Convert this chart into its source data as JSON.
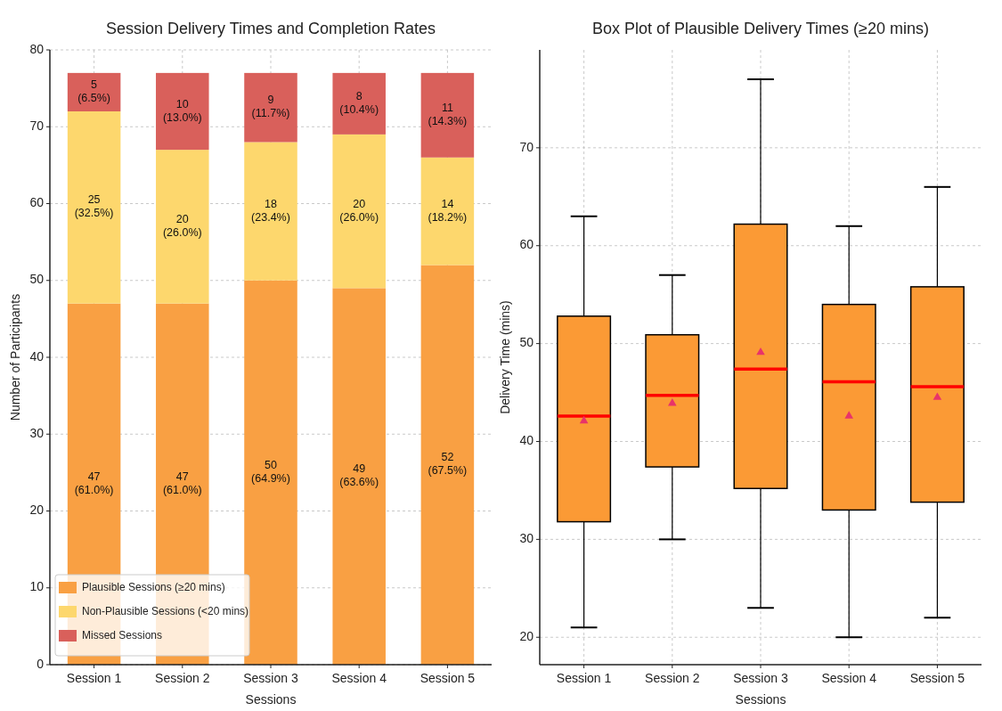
{
  "chart_data": [
    {
      "type": "bar",
      "title": "Session Delivery Times and Completion Rates",
      "xlabel": "Sessions",
      "ylabel": "Number of Participants",
      "categories": [
        "Session 1",
        "Session 2",
        "Session 3",
        "Session 4",
        "Session 5"
      ],
      "stacked": true,
      "series": [
        {
          "name": "Plausible Sessions (≥20 mins)",
          "color": "#f9a043",
          "values": [
            47,
            47,
            50,
            49,
            52
          ],
          "value_labels": [
            "47\n(61.0%)",
            "47\n(61.0%)",
            "50\n(64.9%)",
            "49\n(63.6%)",
            "52\n(67.5%)"
          ]
        },
        {
          "name": "Non-Plausible Sessions (<20 mins)",
          "color": "#fdd76d",
          "values": [
            25,
            20,
            18,
            20,
            14
          ],
          "value_labels": [
            "25\n(32.5%)",
            "20\n(26.0%)",
            "18\n(23.4%)",
            "20\n(26.0%)",
            "14\n(18.2%)"
          ]
        },
        {
          "name": "Missed Sessions",
          "color": "#d9605b",
          "values": [
            5,
            10,
            9,
            8,
            11
          ],
          "value_labels": [
            "5\n(6.5%)",
            "10\n(13.0%)",
            "9\n(11.7%)",
            "8\n(10.4%)",
            "11\n(14.3%)"
          ]
        }
      ],
      "ylim": [
        0,
        80
      ],
      "yticks": [
        0,
        10,
        20,
        30,
        40,
        50,
        60,
        70,
        80
      ],
      "grid": true,
      "legend": "bottom left"
    },
    {
      "type": "box",
      "title": "Box Plot of Plausible Delivery Times (≥20 mins)",
      "xlabel": "Sessions",
      "ylabel": "Delivery Time (mins)",
      "categories": [
        "Session 1",
        "Session 2",
        "Session 3",
        "Session 4",
        "Session 5"
      ],
      "series": [
        {
          "color": "#fb9a35",
          "boxes": [
            {
              "low": 21,
              "q1": 31.8,
              "median": 42.6,
              "q3": 52.8,
              "high": 63,
              "mean": 42.1
            },
            {
              "low": 30,
              "q1": 37.4,
              "median": 44.7,
              "q3": 50.9,
              "high": 57,
              "mean": 43.9
            },
            {
              "low": 23,
              "q1": 35.2,
              "median": 47.4,
              "q3": 62.2,
              "high": 77,
              "mean": 49.1
            },
            {
              "low": 20,
              "q1": 33,
              "median": 46.1,
              "q3": 54,
              "high": 62,
              "mean": 42.6
            },
            {
              "low": 22,
              "q1": 33.8,
              "median": 45.6,
              "q3": 55.8,
              "high": 66,
              "mean": 44.5
            }
          ]
        }
      ],
      "ylim": [
        17.2,
        80
      ],
      "yticks": [
        20,
        30,
        40,
        50,
        60,
        70
      ],
      "grid": true
    }
  ]
}
